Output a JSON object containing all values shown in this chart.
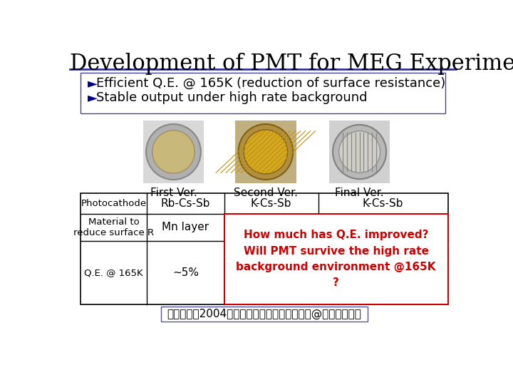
{
  "title": "Development of PMT for MEG Experiment",
  "title_fontsize": 22,
  "title_color": "#000000",
  "bg_color": "#ffffff",
  "bullet1_arrow": "Ø",
  "bullet1_text": "Efficient Q.E. @ 165K (reduction of surface resistance)",
  "bullet2_text": "Stable output under high rate background",
  "bullet_fontsize": 13,
  "bullet_color": "#000000",
  "bullet_arrow_color": "#00008B",
  "col_labels": [
    "First Ver.",
    "Second Ver.",
    "Final Ver."
  ],
  "col_label_fontsize": 11,
  "row_labels": [
    "Photocathode",
    "Material to\nreduce surface R",
    "Q.E. @ 165K"
  ],
  "row_label_fontsize": 9.5,
  "col1_vals": [
    "Rb-Cs-Sb",
    "Mn layer",
    "~5%"
  ],
  "col1_fontsize": 11,
  "col2_val": "K-Cs-Sb",
  "col3_val": "K-Cs-Sb",
  "merged_text": "How much has Q.E. improved?\nWill PMT survive the high rate\nbackground environment @165K\n?",
  "merged_text_color": "#cc0000",
  "merged_fontsize": 11,
  "footer": "久松康子　2004年度低温工学・超伝導学会　@八戸工業大学",
  "footer_fontsize": 11,
  "title_line_color": "#333399",
  "table_line_color": "#000000",
  "merged_border_color": "#cc0000"
}
